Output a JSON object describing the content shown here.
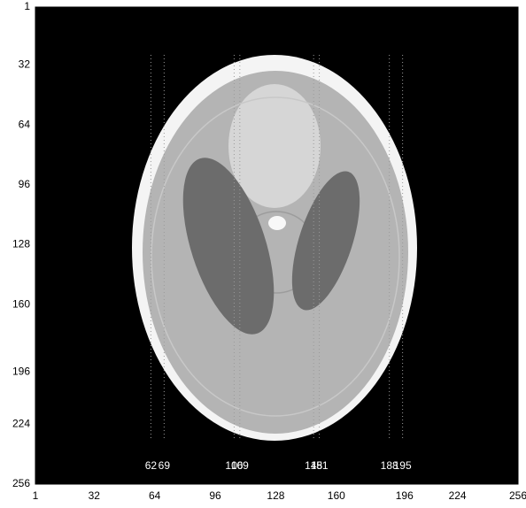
{
  "chart_data": {
    "type": "image",
    "xlim": [
      1,
      256
    ],
    "ylim": [
      256,
      1
    ],
    "xticks": [
      1,
      32,
      64,
      96,
      128,
      160,
      196,
      224,
      256
    ],
    "yticks": [
      1,
      32,
      64,
      96,
      128,
      160,
      196,
      224,
      256
    ],
    "markers": [
      62,
      69,
      106,
      109,
      148,
      151,
      188,
      195
    ],
    "marker_color": "#9a9a9a"
  }
}
